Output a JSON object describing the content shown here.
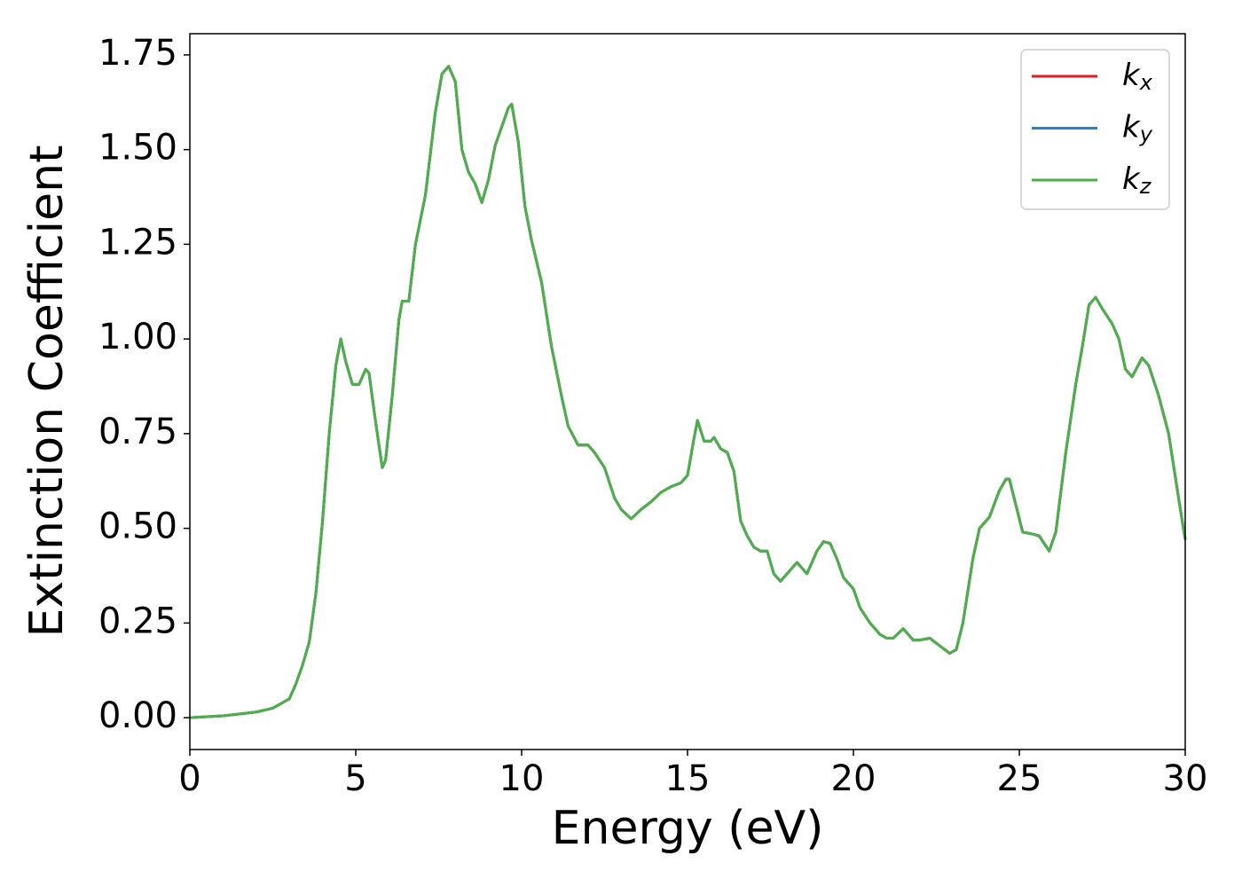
{
  "chart_data": {
    "type": "line",
    "xlabel": "Energy (eV)",
    "ylabel": "Extinction Coefficient",
    "x": [
      0,
      1,
      2,
      2.5,
      3,
      3.2,
      3.4,
      3.6,
      3.8,
      4.0,
      4.2,
      4.4,
      4.55,
      4.7,
      4.9,
      5.1,
      5.3,
      5.4,
      5.6,
      5.8,
      5.9,
      6.1,
      6.3,
      6.4,
      6.6,
      6.8,
      7.1,
      7.4,
      7.6,
      7.8,
      8.0,
      8.2,
      8.4,
      8.6,
      8.8,
      9.0,
      9.2,
      9.4,
      9.6,
      9.7,
      9.9,
      10.1,
      10.3,
      10.6,
      10.9,
      11.2,
      11.4,
      11.7,
      12.0,
      12.2,
      12.5,
      12.8,
      13.0,
      13.3,
      13.6,
      13.9,
      14.2,
      14.5,
      14.8,
      15.0,
      15.2,
      15.3,
      15.5,
      15.7,
      15.8,
      16.0,
      16.2,
      16.4,
      16.6,
      16.8,
      17.0,
      17.2,
      17.4,
      17.6,
      17.8,
      18.0,
      18.3,
      18.6,
      18.9,
      19.1,
      19.3,
      19.5,
      19.7,
      20.0,
      20.2,
      20.5,
      20.8,
      21.0,
      21.2,
      21.5,
      21.8,
      22.0,
      22.3,
      22.6,
      22.9,
      23.1,
      23.3,
      23.6,
      23.8,
      24.1,
      24.4,
      24.6,
      24.7,
      24.9,
      25.1,
      25.4,
      25.6,
      25.9,
      26.1,
      26.4,
      26.7,
      26.9,
      27.1,
      27.3,
      27.5,
      27.8,
      28.0,
      28.2,
      28.4,
      28.7,
      28.9,
      29.2,
      29.5,
      29.8,
      30.0
    ],
    "series": [
      {
        "name": "kx",
        "color": "#e41a1c",
        "values": [
          0,
          0.005,
          0.015,
          0.025,
          0.05,
          0.09,
          0.14,
          0.2,
          0.33,
          0.52,
          0.75,
          0.93,
          1.0,
          0.94,
          0.88,
          0.88,
          0.92,
          0.91,
          0.78,
          0.66,
          0.68,
          0.85,
          1.05,
          1.1,
          1.1,
          1.25,
          1.38,
          1.6,
          1.7,
          1.72,
          1.68,
          1.5,
          1.44,
          1.41,
          1.36,
          1.42,
          1.51,
          1.56,
          1.61,
          1.62,
          1.52,
          1.35,
          1.26,
          1.15,
          0.98,
          0.85,
          0.77,
          0.72,
          0.72,
          0.7,
          0.66,
          0.58,
          0.55,
          0.525,
          0.55,
          0.57,
          0.595,
          0.61,
          0.62,
          0.64,
          0.74,
          0.785,
          0.73,
          0.73,
          0.74,
          0.71,
          0.7,
          0.65,
          0.52,
          0.48,
          0.45,
          0.44,
          0.44,
          0.38,
          0.36,
          0.38,
          0.41,
          0.38,
          0.44,
          0.465,
          0.46,
          0.42,
          0.37,
          0.34,
          0.29,
          0.25,
          0.22,
          0.21,
          0.21,
          0.235,
          0.205,
          0.205,
          0.21,
          0.19,
          0.17,
          0.18,
          0.25,
          0.42,
          0.5,
          0.53,
          0.6,
          0.63,
          0.63,
          0.56,
          0.49,
          0.485,
          0.48,
          0.44,
          0.49,
          0.7,
          0.88,
          0.98,
          1.09,
          1.11,
          1.08,
          1.04,
          1.0,
          0.92,
          0.9,
          0.95,
          0.93,
          0.85,
          0.75,
          0.58,
          0.47
        ]
      },
      {
        "name": "ky",
        "color": "#377eb8",
        "values": [
          0,
          0.005,
          0.015,
          0.025,
          0.05,
          0.09,
          0.14,
          0.2,
          0.33,
          0.52,
          0.75,
          0.93,
          1.0,
          0.94,
          0.88,
          0.88,
          0.92,
          0.91,
          0.78,
          0.66,
          0.68,
          0.85,
          1.05,
          1.1,
          1.1,
          1.25,
          1.38,
          1.6,
          1.7,
          1.72,
          1.68,
          1.5,
          1.44,
          1.41,
          1.36,
          1.42,
          1.51,
          1.56,
          1.61,
          1.62,
          1.52,
          1.35,
          1.26,
          1.15,
          0.98,
          0.85,
          0.77,
          0.72,
          0.72,
          0.7,
          0.66,
          0.58,
          0.55,
          0.525,
          0.55,
          0.57,
          0.595,
          0.61,
          0.62,
          0.64,
          0.74,
          0.785,
          0.73,
          0.73,
          0.74,
          0.71,
          0.7,
          0.65,
          0.52,
          0.48,
          0.45,
          0.44,
          0.44,
          0.38,
          0.36,
          0.38,
          0.41,
          0.38,
          0.44,
          0.465,
          0.46,
          0.42,
          0.37,
          0.34,
          0.29,
          0.25,
          0.22,
          0.21,
          0.21,
          0.235,
          0.205,
          0.205,
          0.21,
          0.19,
          0.17,
          0.18,
          0.25,
          0.42,
          0.5,
          0.53,
          0.6,
          0.63,
          0.63,
          0.56,
          0.49,
          0.485,
          0.48,
          0.44,
          0.49,
          0.7,
          0.88,
          0.98,
          1.09,
          1.11,
          1.08,
          1.04,
          1.0,
          0.92,
          0.9,
          0.95,
          0.93,
          0.85,
          0.75,
          0.58,
          0.47
        ]
      },
      {
        "name": "kz",
        "color": "#4daf4a",
        "values": [
          0,
          0.005,
          0.015,
          0.025,
          0.05,
          0.09,
          0.14,
          0.2,
          0.33,
          0.52,
          0.75,
          0.93,
          1.0,
          0.94,
          0.88,
          0.88,
          0.92,
          0.91,
          0.78,
          0.66,
          0.68,
          0.85,
          1.05,
          1.1,
          1.1,
          1.25,
          1.38,
          1.6,
          1.7,
          1.72,
          1.68,
          1.5,
          1.44,
          1.41,
          1.36,
          1.42,
          1.51,
          1.56,
          1.61,
          1.62,
          1.52,
          1.35,
          1.26,
          1.15,
          0.98,
          0.85,
          0.77,
          0.72,
          0.72,
          0.7,
          0.66,
          0.58,
          0.55,
          0.525,
          0.55,
          0.57,
          0.595,
          0.61,
          0.62,
          0.64,
          0.74,
          0.785,
          0.73,
          0.73,
          0.74,
          0.71,
          0.7,
          0.65,
          0.52,
          0.48,
          0.45,
          0.44,
          0.44,
          0.38,
          0.36,
          0.38,
          0.41,
          0.38,
          0.44,
          0.465,
          0.46,
          0.42,
          0.37,
          0.34,
          0.29,
          0.25,
          0.22,
          0.21,
          0.21,
          0.235,
          0.205,
          0.205,
          0.21,
          0.19,
          0.17,
          0.18,
          0.25,
          0.42,
          0.5,
          0.53,
          0.6,
          0.63,
          0.63,
          0.56,
          0.49,
          0.485,
          0.48,
          0.44,
          0.49,
          0.7,
          0.88,
          0.98,
          1.09,
          1.11,
          1.08,
          1.04,
          1.0,
          0.92,
          0.9,
          0.95,
          0.93,
          0.85,
          0.75,
          0.58,
          0.47
        ]
      }
    ],
    "xlim": [
      0,
      30
    ],
    "xticks": [
      0,
      5,
      10,
      15,
      20,
      25,
      30
    ],
    "ylim": [
      -0.084,
      1.806
    ],
    "yticks": [
      {
        "value": 0,
        "label": "0.00"
      },
      {
        "value": 0.25,
        "label": "0.25"
      },
      {
        "value": 0.5,
        "label": "0.50"
      },
      {
        "value": 0.75,
        "label": "0.75"
      },
      {
        "value": 1.0,
        "label": "1.00"
      },
      {
        "value": 1.25,
        "label": "1.25"
      },
      {
        "value": 1.5,
        "label": "1.50"
      },
      {
        "value": 1.75,
        "label": "1.75"
      }
    ],
    "grid": false,
    "legend": "upper right"
  }
}
